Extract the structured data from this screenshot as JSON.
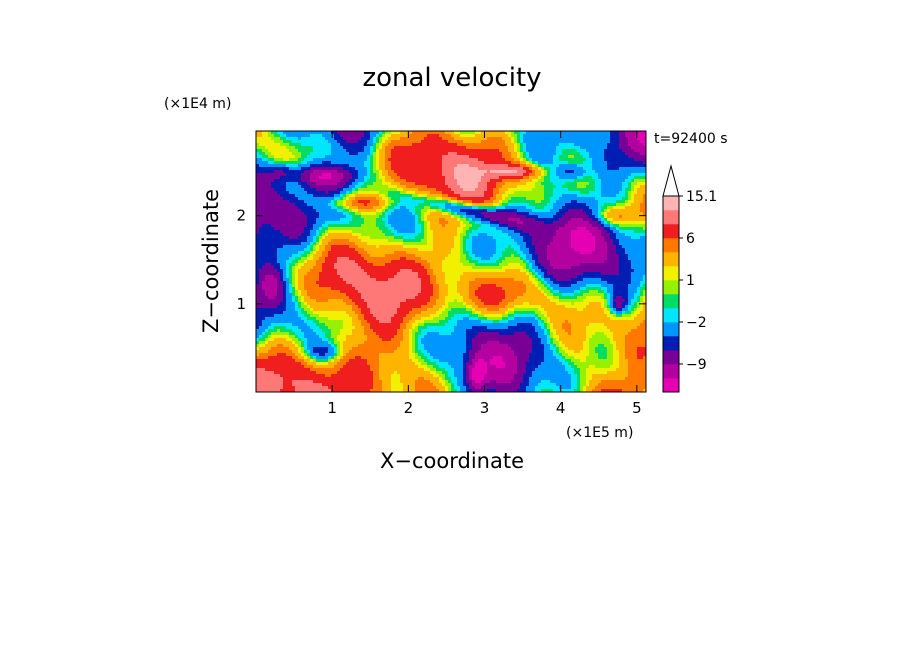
{
  "chart_data": {
    "type": "heatmap",
    "title": "zonal velocity",
    "xlabel": "X−coordinate",
    "ylabel": "Z−coordinate",
    "x_unit": "(×1E5 m)",
    "y_unit": "(×1E4 m)",
    "time_label": "t=92400 s",
    "xlim": [
      0,
      5.12
    ],
    "ylim": [
      0,
      2.96
    ],
    "x_ticks": [
      "1",
      "2",
      "3",
      "4",
      "5"
    ],
    "y_ticks": [
      "1",
      "2"
    ],
    "colorbar": {
      "labels": [
        "15.1",
        "6",
        "1",
        "−2",
        "−9"
      ],
      "levels": [
        -15,
        -12,
        -9,
        -6,
        -4,
        -2,
        -1,
        0,
        1,
        2,
        4,
        6,
        9,
        12,
        15.1
      ],
      "colors": [
        "#e600b4",
        "#b4009e",
        "#780096",
        "#001eb4",
        "#0096ff",
        "#00e6ff",
        "#00dc64",
        "#96f000",
        "#f0f000",
        "#ffb400",
        "#ff7800",
        "#f01e1e",
        "#ff7878",
        "#ffb4b4"
      ],
      "extend_top": true
    },
    "grid": false,
    "legend": "right"
  }
}
